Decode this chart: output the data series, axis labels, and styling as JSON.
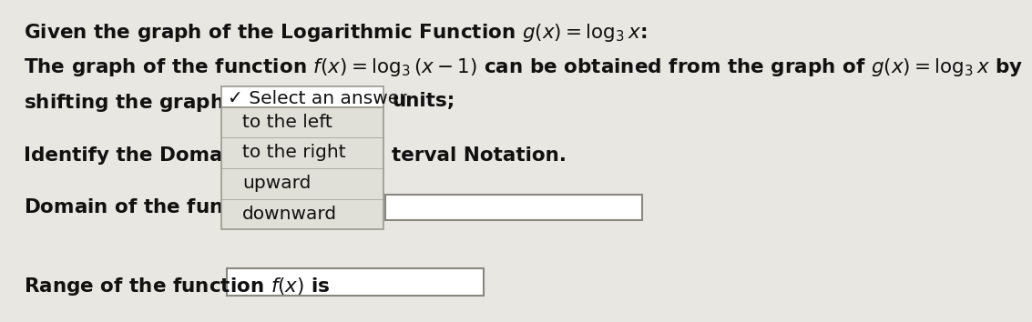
{
  "bg_color": "#e8e7e2",
  "text_color": "#111111",
  "title_line1": "Given the graph of the Logarithmic Function $g(x) = \\log_3 x$:",
  "line2a": "The graph of the function $f(x) = \\log_3(x - 1)$ can be obtained from the graph of $g(x) = \\log_3 x$ by",
  "line3a": "shifting the graph of $g(x)$",
  "line3b": "✓ Select an answer",
  "line3c": "units;",
  "dropdown_items": [
    "to the left",
    "to the right",
    "upward",
    "downward"
  ],
  "identify_left": "Identify the Domain and R",
  "identify_right": "terval Notation.",
  "domain_left": "Domain of the function $f$",
  "range_left": "Range of the function $f(x)$ is",
  "dropdown_top_bg": "#ffffff",
  "dropdown_body_bg": "#e0dfd8",
  "dropdown_border": "#999990",
  "input_box_bg": "#ffffff",
  "input_box_border": "#888880",
  "font_size": 15.5,
  "font_size_dropdown": 14.5
}
